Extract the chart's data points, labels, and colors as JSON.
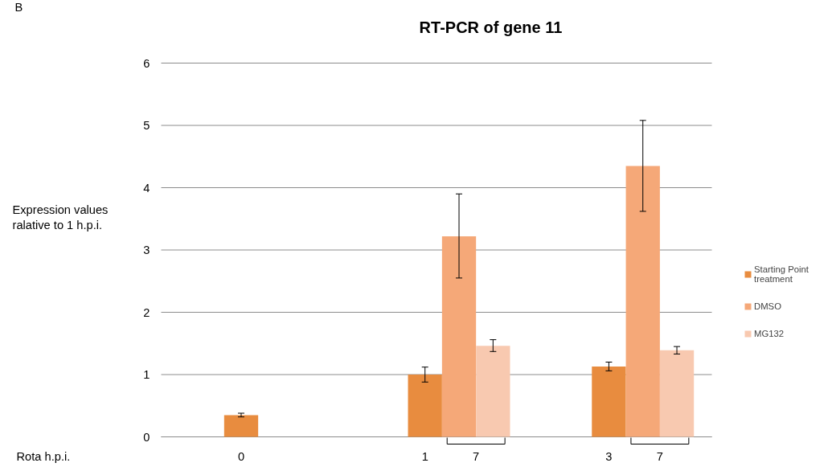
{
  "chart_data": {
    "type": "bar",
    "title": "RT-PCR of gene 11",
    "ylabel": "Expression values\nralative to 1 h.p.i.",
    "categories": [
      "0",
      "1",
      "3"
    ],
    "series": [
      {
        "name": "Starting Point\ntreatment",
        "color": "#e88c3f",
        "values": [
          0.35,
          1.0,
          1.13
        ],
        "errors": [
          0.03,
          0.12,
          0.07
        ]
      },
      {
        "name": "DMSO",
        "color": "#f5a878",
        "values": [
          null,
          3.22,
          4.35
        ],
        "errors": [
          null,
          [
            2.55,
            3.9
          ],
          [
            3.62,
            5.08
          ]
        ]
      },
      {
        "name": "MG132",
        "color": "#f8c9b0",
        "values": [
          null,
          1.46,
          1.39
        ],
        "errors": [
          null,
          [
            1.37,
            1.56
          ],
          [
            1.33,
            1.45
          ]
        ]
      }
    ],
    "ylim": [
      0,
      6
    ],
    "yticks": [
      0,
      1,
      2,
      3,
      4,
      5,
      6
    ],
    "grid": "y",
    "legend": "right",
    "annotations": [
      "B",
      "Rota h.p.i.",
      "7",
      "7"
    ]
  }
}
